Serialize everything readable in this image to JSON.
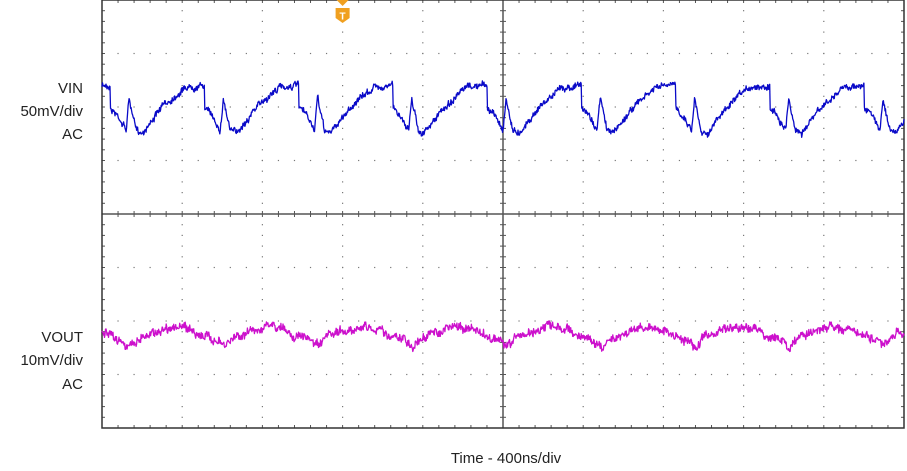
{
  "chart_data": {
    "type": "line",
    "title": "",
    "xlabel": "Time - 400ns/div",
    "x_unit": "ns",
    "xlim": [
      0,
      4000
    ],
    "grid": true,
    "divisions": {
      "x": 10,
      "y": 8
    },
    "trigger": {
      "label": "T",
      "time_ns": 1200,
      "color": "#f0a020"
    },
    "channels": [
      {
        "name": "VIN",
        "scale_label": "50mV/div",
        "coupling": "AC",
        "mv_per_div": 50,
        "color": "#0a0ac8",
        "ylim_mv": [
          -100,
          100
        ],
        "period_ns": 470,
        "first_edge_ns": 40,
        "cycle_shape": [
          [
            0,
            20.5
          ],
          [
            2,
            -1
          ],
          [
            40,
            -8
          ],
          [
            80,
            -21
          ],
          [
            95,
            8
          ],
          [
            110,
            -5
          ],
          [
            130,
            -22
          ],
          [
            160,
            -24
          ],
          [
            260,
            0
          ],
          [
            375,
            18.5
          ],
          [
            468,
            20.5
          ]
        ]
      },
      {
        "name": "VOUT",
        "scale_label": "10mV/div",
        "coupling": "AC",
        "mv_per_div": 10,
        "color": "#cc10cc",
        "ylim_mv": [
          -20,
          20
        ],
        "period_ns": 470,
        "first_edge_ns": 40,
        "cycle_shape": [
          [
            0,
            -3
          ],
          [
            60,
            -3.5
          ],
          [
            100,
            -5
          ],
          [
            150,
            -3
          ],
          [
            300,
            -1
          ],
          [
            400,
            -1.5
          ],
          [
            470,
            -3
          ]
        ]
      }
    ]
  }
}
